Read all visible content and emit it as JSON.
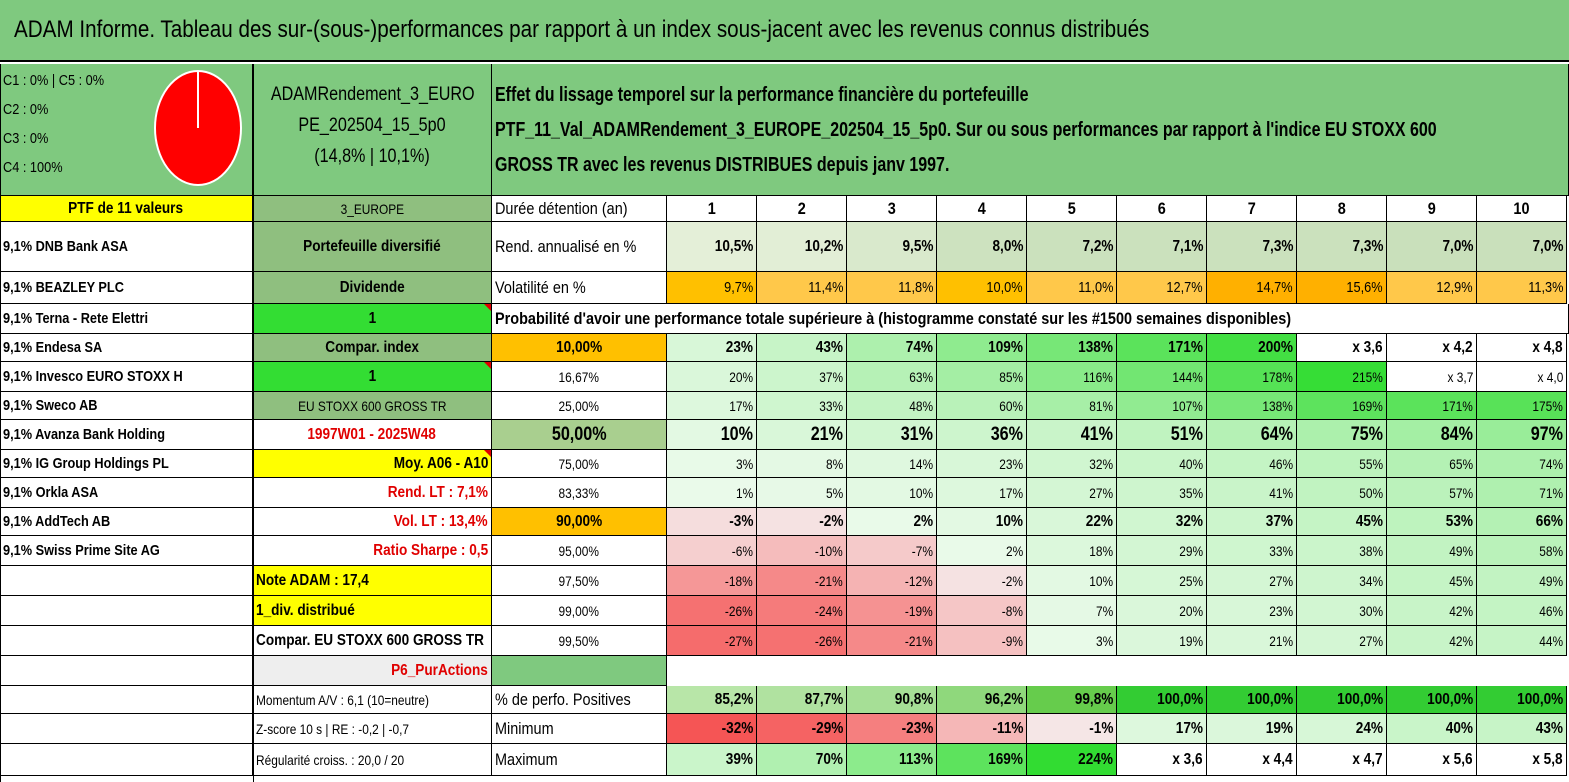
{
  "title": "ADAM Informe. Tableau des sur-(sous-)performances par rapport à un index sous-jacent avec les revenus connus distribués",
  "allocation": {
    "lines": [
      "C1 : 0% | C5 : 0%",
      "C2 : 0%",
      "C3 : 0%",
      "C4 : 100%"
    ],
    "pie_color": "#ff0000",
    "c4_share": 100
  },
  "portfolio": {
    "name_line1": "ADAMRendement_3_EURO",
    "name_line2": "PE_202504_15_5p0",
    "name_line3": "(14,8% | 10,1%)",
    "description_lines": [
      "Effet du lissage temporel sur la performance financière du portefeuille",
      "PTF_11_Val_ADAMRendement_3_EUROPE_202504_15_5p0. Sur ou sous performances par rapport à l'indice EU STOXX 600",
      "GROSS TR avec les revenus DISTRIBUES depuis janv 1997."
    ]
  },
  "ptf_header": "PTF de 11 valeurs",
  "holdings": [
    "9,1% DNB Bank ASA",
    "9,1% BEAZLEY PLC",
    "9,1% Terna - Rete Elettri",
    "9,1% Endesa SA",
    "9,1% Invesco EURO STOXX H",
    "9,1% Sweco AB",
    "9,1% Avanza Bank Holding",
    "9,1% IG Group Holdings PL",
    "9,1% Orkla ASA",
    "9,1% AddTech AB",
    "9,1% Swiss Prime Site AG"
  ],
  "info_column": [
    "3_EUROPE",
    "Portefeuille diversifié",
    "Dividende",
    "1",
    "Compar. index",
    "1",
    "EU STOXX 600 GROSS TR",
    "1997W01 - 2025W48",
    "Moy. A06 - A10",
    "Rend. LT : 7,1%",
    "Vol. LT : 13,4%",
    "Ratio Sharpe : 0,5",
    "Note ADAM : 17,4",
    "1_div. distribué",
    "Compar. EU STOXX 600 GROSS TR",
    "P6_PurActions",
    "Momentum A/V : 6,1 (10=neutre)",
    "Z-score 10 s | RE : -0,2 | -0,7",
    "Régularité croiss. : 20,0 / 20"
  ],
  "table": {
    "duration_label": "Durée détention (an)",
    "years": [
      "1",
      "2",
      "3",
      "4",
      "5",
      "6",
      "7",
      "8",
      "9",
      "10"
    ],
    "return_label": "Rend. annualisé en %",
    "returns": [
      "10,5%",
      "10,2%",
      "9,5%",
      "8,0%",
      "7,2%",
      "7,1%",
      "7,3%",
      "7,3%",
      "7,0%",
      "7,0%"
    ],
    "volatility_label": "Volatilité en %",
    "volatility": [
      "9,7%",
      "11,4%",
      "11,8%",
      "10,0%",
      "11,0%",
      "12,7%",
      "14,7%",
      "15,6%",
      "12,9%",
      "11,3%"
    ],
    "probability_heading": "Probabilité d'avoir une performance totale supérieure à (histogramme constaté sur les #1500 semaines disponibles)",
    "probabilities": [
      {
        "label": "10,00%",
        "values": [
          "23%",
          "43%",
          "74%",
          "109%",
          "138%",
          "171%",
          "200%",
          "x 3,6",
          "x 4,2",
          "x 4,8"
        ]
      },
      {
        "label": "16,67%",
        "values": [
          "20%",
          "37%",
          "63%",
          "85%",
          "116%",
          "144%",
          "178%",
          "215%",
          "x 3,7",
          "x 4,0"
        ]
      },
      {
        "label": "25,00%",
        "values": [
          "17%",
          "33%",
          "48%",
          "60%",
          "81%",
          "107%",
          "138%",
          "169%",
          "171%",
          "175%"
        ]
      },
      {
        "label": "50,00%",
        "values": [
          "10%",
          "21%",
          "31%",
          "36%",
          "41%",
          "51%",
          "64%",
          "75%",
          "84%",
          "97%"
        ]
      },
      {
        "label": "75,00%",
        "values": [
          "3%",
          "8%",
          "14%",
          "23%",
          "32%",
          "40%",
          "46%",
          "55%",
          "65%",
          "74%"
        ]
      },
      {
        "label": "83,33%",
        "values": [
          "1%",
          "5%",
          "10%",
          "17%",
          "27%",
          "35%",
          "41%",
          "50%",
          "57%",
          "71%"
        ]
      },
      {
        "label": "90,00%",
        "values": [
          "-3%",
          "-2%",
          "2%",
          "10%",
          "22%",
          "32%",
          "37%",
          "45%",
          "53%",
          "66%"
        ]
      },
      {
        "label": "95,00%",
        "values": [
          "-6%",
          "-10%",
          "-7%",
          "2%",
          "18%",
          "29%",
          "33%",
          "38%",
          "49%",
          "58%"
        ]
      },
      {
        "label": "97,50%",
        "values": [
          "-18%",
          "-21%",
          "-12%",
          "-2%",
          "10%",
          "25%",
          "27%",
          "34%",
          "45%",
          "49%"
        ]
      },
      {
        "label": "99,00%",
        "values": [
          "-26%",
          "-24%",
          "-19%",
          "-8%",
          "7%",
          "20%",
          "23%",
          "30%",
          "42%",
          "46%"
        ]
      },
      {
        "label": "99,50%",
        "values": [
          "-27%",
          "-26%",
          "-21%",
          "-9%",
          "3%",
          "19%",
          "21%",
          "27%",
          "42%",
          "44%"
        ]
      }
    ],
    "positive_label": "% de perfo. Positives",
    "positive": [
      "85,2%",
      "87,7%",
      "90,8%",
      "96,2%",
      "99,8%",
      "100,0%",
      "100,0%",
      "100,0%",
      "100,0%",
      "100,0%"
    ],
    "minimum_label": "Minimum",
    "minimum": [
      "-32%",
      "-29%",
      "-23%",
      "-11%",
      "-1%",
      "17%",
      "19%",
      "24%",
      "40%",
      "43%"
    ],
    "maximum_label": "Maximum",
    "maximum": [
      "39%",
      "70%",
      "113%",
      "169%",
      "224%",
      "x 3,6",
      "x 4,4",
      "x 4,7",
      "x 5,6",
      "x 5,8"
    ]
  },
  "colors": {
    "title_green": "#7fc97f",
    "header_green": "#7fc97f",
    "yellow": "#ffff00",
    "bright_green": "#33dd33",
    "mid_green": "#8fbf7f",
    "orange": "#ffc000",
    "red_text": "#e00000"
  }
}
